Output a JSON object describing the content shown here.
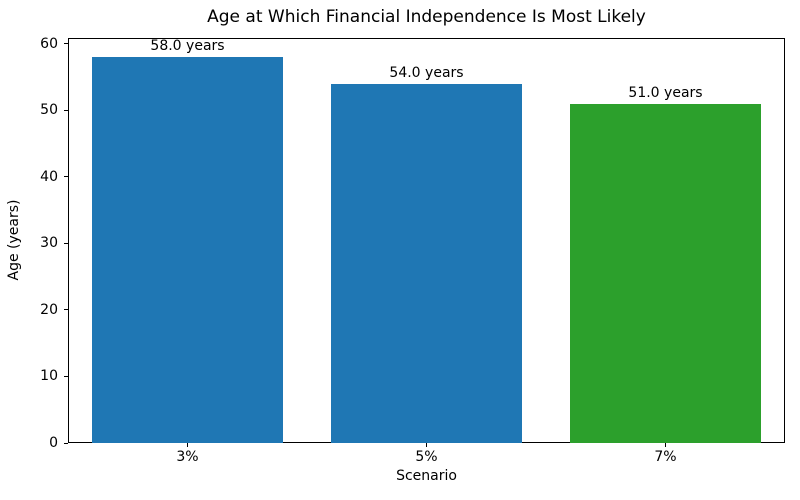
{
  "chart_data": {
    "type": "bar",
    "title": "Age at Which Financial Independence Is Most Likely",
    "xlabel": "Scenario",
    "ylabel": "Age (years)",
    "categories": [
      "3%",
      "5%",
      "7%"
    ],
    "values": [
      58.0,
      54.0,
      51.0
    ],
    "bar_labels": [
      "58.0 years",
      "54.0 years",
      "51.0 years"
    ],
    "bar_colors": [
      "#1f77b4",
      "#1f77b4",
      "#2ca02c"
    ],
    "ylim": [
      0,
      60.9
    ],
    "yticks": [
      0,
      10,
      20,
      30,
      40,
      50,
      60
    ],
    "bar_width_fraction": 0.8,
    "grid": false,
    "legend": false,
    "spine_color": "#000000",
    "background_color": "#ffffff"
  }
}
